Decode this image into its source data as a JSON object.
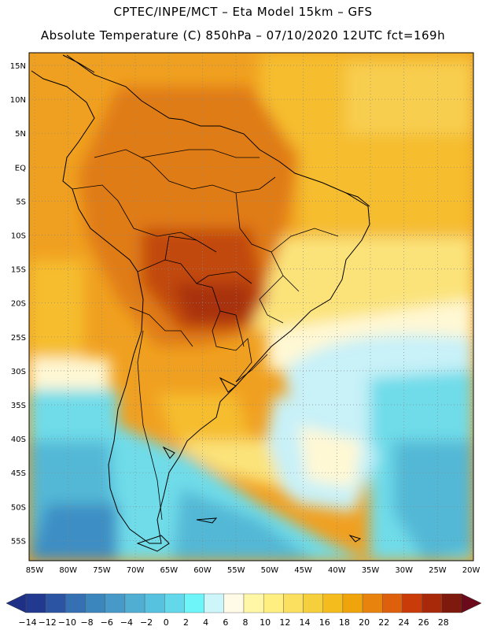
{
  "header": {
    "title_line1": "CPTEC/INPE/MCT –  Eta Model 15km – GFS",
    "title_line2": "Absolute Temperature (C) 850hPa – 07/10/2020 12UTC fct=169h"
  },
  "map": {
    "lat_labels": [
      "15N",
      "10N",
      "5N",
      "EQ",
      "5S",
      "10S",
      "15S",
      "20S",
      "25S",
      "30S",
      "35S",
      "40S",
      "45S",
      "50S",
      "55S"
    ],
    "lon_labels": [
      "85W",
      "80W",
      "75W",
      "70W",
      "65W",
      "60W",
      "55W",
      "50W",
      "45W",
      "40W",
      "35W",
      "30W",
      "25W",
      "20W"
    ]
  },
  "colorbar": {
    "labels": [
      "-14",
      "-12",
      "-10",
      "-8",
      "-6",
      "-4",
      "-2",
      "0",
      "2",
      "4",
      "6",
      "8",
      "10",
      "12",
      "14",
      "16",
      "18",
      "20",
      "22",
      "24",
      "26",
      "28"
    ],
    "low_overflow_color": "#1e2f86",
    "high_overflow_color": "#6b0a1a",
    "colors": [
      "#21398f",
      "#2b55a2",
      "#3470b2",
      "#3c86be",
      "#479ac8",
      "#50aed3",
      "#57c2df",
      "#62d8ea",
      "#6df5fa",
      "#cdf6fb",
      "#fffbe6",
      "#fff7a6",
      "#ffef80",
      "#fbe060",
      "#f6cf3c",
      "#f4bc1d",
      "#f0a40c",
      "#e8840e",
      "#de5f0c",
      "#c93c0a",
      "#a82909",
      "#7e190d"
    ]
  },
  "fills": {
    "hot": "#c24a0f",
    "warm": "#e07c18",
    "orange": "#f0a020",
    "gold": "#f6bd2e",
    "yellow": "#fbe37a",
    "cream": "#fff8d4",
    "lightcyan": "#c8f1f8",
    "cyan": "#6fdce9",
    "teal": "#52b8d6",
    "blue": "#3e8ec4",
    "land_line": "#000000"
  }
}
